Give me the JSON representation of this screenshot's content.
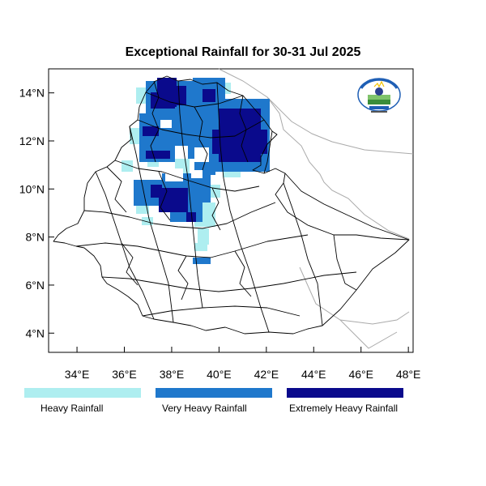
{
  "title": "Exceptional Rainfall for 30-31 Jul 2025",
  "map": {
    "lon_range": [
      32.8,
      48.2
    ],
    "lat_range": [
      3.2,
      15.0
    ],
    "lat_ticks": [
      {
        "value": 14,
        "label": "14°N"
      },
      {
        "value": 12,
        "label": "12°N"
      },
      {
        "value": 10,
        "label": "10°N"
      },
      {
        "value": 8,
        "label": "8°N"
      },
      {
        "value": 6,
        "label": "6°N"
      },
      {
        "value": 4,
        "label": "4°N"
      }
    ],
    "lon_ticks": [
      {
        "value": 34,
        "label": "34°E"
      },
      {
        "value": 36,
        "label": "36°E"
      },
      {
        "value": 38,
        "label": "38°E"
      },
      {
        "value": 40,
        "label": "40°E"
      },
      {
        "value": 42,
        "label": "42°E"
      },
      {
        "value": 44,
        "label": "44°E"
      },
      {
        "value": 46,
        "label": "46°E"
      },
      {
        "value": 48,
        "label": "48°E"
      }
    ]
  },
  "legend": [
    {
      "label": "Heavy Rainfall",
      "color": "#aeeef0"
    },
    {
      "label": "Very Heavy Rainfall",
      "color": "#1f78cc"
    },
    {
      "label": "Extremely Heavy Rainfall",
      "color": "#0a0a8c"
    }
  ],
  "colors": {
    "heavy": "#aeeef0",
    "very_heavy": "#1f78cc",
    "extreme": "#0a0a8c",
    "border": "#000000",
    "neighbor_border": "#aaaaaa"
  },
  "logo": {
    "icon": "ethiopian-meteorology-institute-logo"
  }
}
